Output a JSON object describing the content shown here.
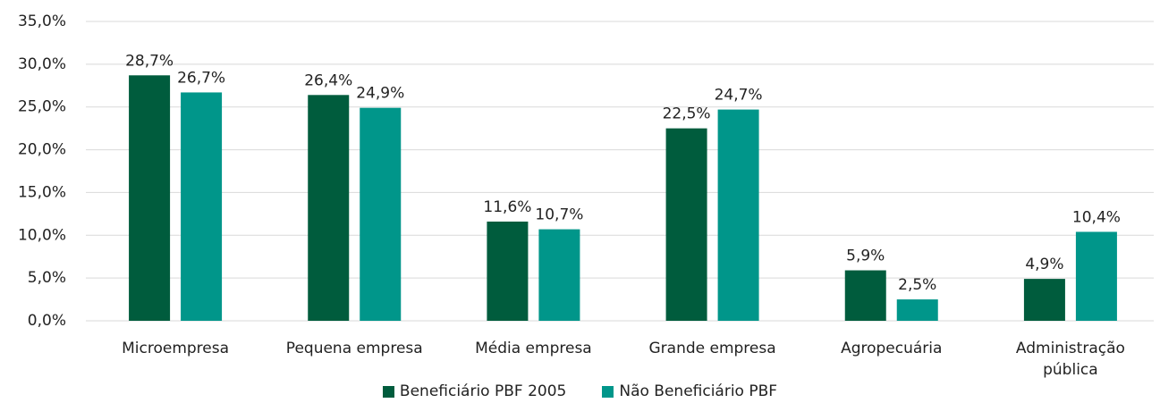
{
  "chart_data": {
    "type": "bar",
    "categories": [
      "Microempresa",
      "Pequena empresa",
      "Média empresa",
      "Grande empresa",
      "Agropecuária",
      "Administração pública"
    ],
    "series": [
      {
        "name": "Beneficiário PBF 2005",
        "color": "#005c3d",
        "values": [
          28.7,
          26.4,
          11.6,
          22.5,
          5.9,
          4.9
        ],
        "value_labels": [
          "28,7%",
          "26,4%",
          "11,6%",
          "22,5%",
          "5,9%",
          "4,9%"
        ]
      },
      {
        "name": "Não Beneficiário PBF",
        "color": "#00968a",
        "values": [
          26.7,
          24.9,
          10.7,
          24.7,
          2.5,
          10.4
        ],
        "value_labels": [
          "26,7%",
          "24,9%",
          "10,7%",
          "24,7%",
          "2,5%",
          "10,4%"
        ]
      }
    ],
    "ylim": [
      0,
      35
    ],
    "yticks": [
      {
        "value": 0,
        "label": "0,0%"
      },
      {
        "value": 5,
        "label": "5,0%"
      },
      {
        "value": 10,
        "label": "10,0%"
      },
      {
        "value": 15,
        "label": "15,0%"
      },
      {
        "value": 20,
        "label": "20,0%"
      },
      {
        "value": 25,
        "label": "25,0%"
      },
      {
        "value": 30,
        "label": "30,0%"
      },
      {
        "value": 35,
        "label": "35,0%"
      }
    ],
    "grid": true,
    "legend": "bottom"
  }
}
